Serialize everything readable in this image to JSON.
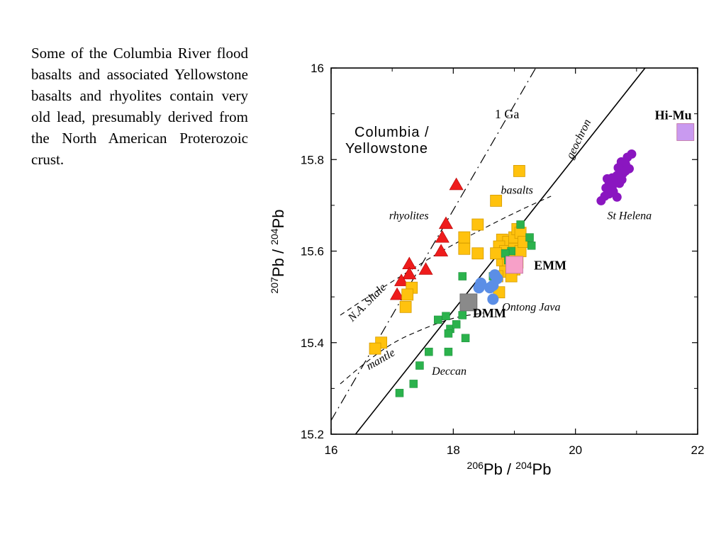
{
  "caption": "Some of the Columbia River flood basalts and associated Yellowstone basalts and rhyolites contain very old lead, presumably derived from the North American Proterozoic crust.",
  "colors": {
    "rhyolites": "#ee1c1c",
    "basalts": "#ffc20e",
    "deccan": "#2bb24c",
    "ontong_java": "#5b8ee6",
    "st_helena": "#8a16c0",
    "dmm": "#8a8a8a",
    "emm": "#f7a0c8",
    "himu": "#c99af0"
  },
  "chart_data": {
    "type": "scatter",
    "title": "",
    "xlabel": {
      "sup1": "206",
      "t1": "Pb / ",
      "sup2": "204",
      "t2": "Pb"
    },
    "ylabel": {
      "sup1": "207",
      "t1": "Pb / ",
      "sup2": "204",
      "t2": "Pb"
    },
    "xlim": [
      16,
      22
    ],
    "ylim": [
      15.2,
      16
    ],
    "x_ticks": [
      16,
      18,
      20,
      22
    ],
    "y_ticks": [
      15.2,
      15.4,
      15.6,
      15.8,
      16
    ],
    "x_tick_labels": [
      "16",
      "18",
      "20",
      "22"
    ],
    "y_tick_labels": [
      "15.2",
      "15.4",
      "15.6",
      "15.8",
      "16"
    ],
    "grid": false,
    "legend": "none",
    "group_title": {
      "line1": "Columbia /",
      "line2": "Yellowstone"
    },
    "series": [
      {
        "name": "rhyolites",
        "marker": "triangle",
        "points": [
          [
            18.05,
            15.745
          ],
          [
            17.88,
            15.66
          ],
          [
            17.82,
            15.63
          ],
          [
            17.8,
            15.6
          ],
          [
            17.55,
            15.56
          ],
          [
            17.28,
            15.572
          ],
          [
            17.28,
            15.55
          ],
          [
            17.15,
            15.535
          ],
          [
            17.08,
            15.505
          ]
        ]
      },
      {
        "name": "basalts",
        "marker": "square",
        "points": [
          [
            19.08,
            15.775
          ],
          [
            18.7,
            15.71
          ],
          [
            18.4,
            15.658
          ],
          [
            18.18,
            15.63
          ],
          [
            18.18,
            15.605
          ],
          [
            18.4,
            15.595
          ],
          [
            17.32,
            15.52
          ],
          [
            17.25,
            15.505
          ],
          [
            17.22,
            15.478
          ],
          [
            16.82,
            15.4
          ],
          [
            16.72,
            15.387
          ],
          [
            18.8,
            15.625
          ],
          [
            18.9,
            15.62
          ],
          [
            19.0,
            15.63
          ],
          [
            19.05,
            15.648
          ],
          [
            19.1,
            15.64
          ],
          [
            18.75,
            15.61
          ],
          [
            18.85,
            15.6
          ],
          [
            18.95,
            15.59
          ],
          [
            19.0,
            15.605
          ],
          [
            18.8,
            15.58
          ],
          [
            18.9,
            15.57
          ],
          [
            19.05,
            15.575
          ],
          [
            18.85,
            15.555
          ],
          [
            19.0,
            15.56
          ],
          [
            18.95,
            15.545
          ],
          [
            19.1,
            15.6
          ],
          [
            19.15,
            15.62
          ],
          [
            18.7,
            15.595
          ],
          [
            18.75,
            15.51
          ],
          [
            18.72,
            15.545
          ]
        ]
      },
      {
        "name": "Deccan",
        "marker": "square-small",
        "points": [
          [
            19.1,
            15.658
          ],
          [
            19.25,
            15.63
          ],
          [
            19.28,
            15.612
          ],
          [
            18.95,
            15.6
          ],
          [
            18.85,
            15.595
          ],
          [
            18.9,
            15.58
          ],
          [
            18.65,
            15.545
          ],
          [
            18.15,
            15.545
          ],
          [
            18.15,
            15.46
          ],
          [
            17.88,
            15.458
          ],
          [
            17.75,
            15.45
          ],
          [
            17.95,
            15.43
          ],
          [
            18.05,
            15.44
          ],
          [
            17.92,
            15.42
          ],
          [
            18.2,
            15.41
          ],
          [
            17.92,
            15.38
          ],
          [
            17.6,
            15.38
          ],
          [
            17.45,
            15.35
          ],
          [
            17.35,
            15.31
          ],
          [
            17.12,
            15.29
          ]
        ]
      },
      {
        "name": "Ontong Java",
        "marker": "circle",
        "points": [
          [
            18.68,
            15.548
          ],
          [
            18.72,
            15.54
          ],
          [
            18.65,
            15.525
          ],
          [
            18.6,
            15.52
          ],
          [
            18.45,
            15.53
          ],
          [
            18.42,
            15.52
          ],
          [
            18.65,
            15.495
          ]
        ]
      },
      {
        "name": "St Helena",
        "marker": "circle",
        "points": [
          [
            20.92,
            15.812
          ],
          [
            20.85,
            15.805
          ],
          [
            20.82,
            15.79
          ],
          [
            20.88,
            15.78
          ],
          [
            20.75,
            15.795
          ],
          [
            20.7,
            15.782
          ],
          [
            20.78,
            15.77
          ],
          [
            20.68,
            15.765
          ],
          [
            20.6,
            15.76
          ],
          [
            20.52,
            15.758
          ],
          [
            20.65,
            15.75
          ],
          [
            20.72,
            15.748
          ],
          [
            20.55,
            15.745
          ],
          [
            20.6,
            15.74
          ],
          [
            20.5,
            15.738
          ],
          [
            20.62,
            15.73
          ],
          [
            20.55,
            15.725
          ],
          [
            20.48,
            15.72
          ],
          [
            20.68,
            15.718
          ],
          [
            20.42,
            15.71
          ],
          [
            20.82,
            15.775
          ],
          [
            20.76,
            15.756
          ]
        ]
      }
    ],
    "end_members": [
      {
        "name": "DMM",
        "x": 18.25,
        "y": 15.488
      },
      {
        "name": "EMM",
        "x": 19.0,
        "y": 15.57
      },
      {
        "name": "Hi-Mu",
        "x": 21.8,
        "y": 15.86
      }
    ],
    "lines": {
      "geochron": {
        "x": [
          16.4,
          21.14
        ],
        "y": [
          15.2,
          16.0
        ]
      },
      "one_ga": {
        "x": [
          16.0,
          19.35
        ],
        "y": [
          15.23,
          16.0
        ]
      },
      "na_shale": {
        "x": [
          16.15,
          16.6,
          17.2,
          17.8,
          18.5,
          19.1,
          19.6
        ],
        "y": [
          15.46,
          15.5,
          15.55,
          15.6,
          15.65,
          15.69,
          15.72
        ]
      },
      "mantle": {
        "x": [
          16.15,
          16.5,
          17.0,
          17.5,
          18.0,
          18.5
        ],
        "y": [
          15.31,
          15.35,
          15.4,
          15.43,
          15.455,
          15.465
        ]
      }
    },
    "annotations": [
      {
        "text": "1 Ga",
        "x": 18.68,
        "y": 15.89,
        "style": "rom"
      },
      {
        "text": "geochron",
        "x": 19.95,
        "y": 15.8,
        "style": "it",
        "angle": -64
      },
      {
        "text": "basalts",
        "x": 18.78,
        "y": 15.725,
        "style": "it"
      },
      {
        "text": "rhyolites",
        "x": 16.95,
        "y": 15.67,
        "style": "it"
      },
      {
        "text": "St Helena",
        "x": 20.52,
        "y": 15.67,
        "style": "it"
      },
      {
        "text": "Ontong Java",
        "x": 18.8,
        "y": 15.47,
        "style": "it"
      },
      {
        "text": "Deccan",
        "x": 17.65,
        "y": 15.33,
        "style": "it"
      },
      {
        "text": "N.A. Shale",
        "x": 16.35,
        "y": 15.445,
        "style": "it",
        "angle": -45
      },
      {
        "text": "mantle",
        "x": 16.62,
        "y": 15.34,
        "style": "it",
        "angle": -30
      }
    ]
  }
}
